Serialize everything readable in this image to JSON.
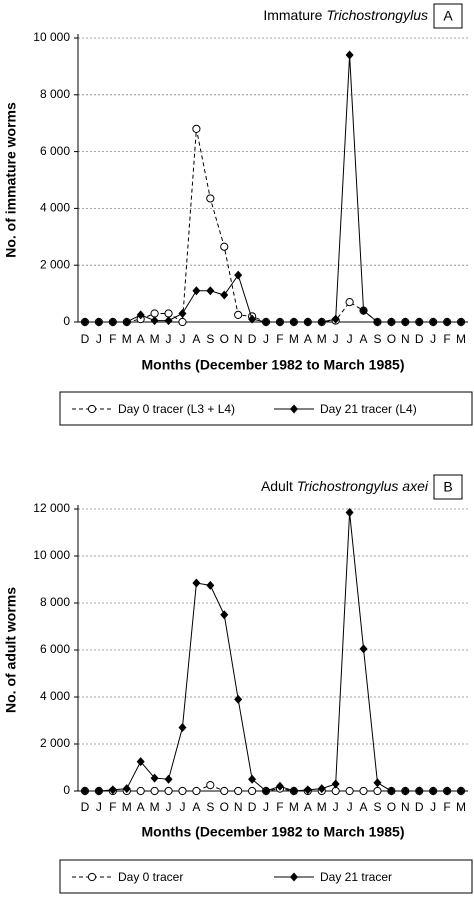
{
  "chart_data": [
    {
      "type": "line",
      "title": "Immature",
      "title_italic": "Trichostrongylus",
      "panel_label": "A",
      "y_label": "No. of immature worms",
      "x_label": "Months (December 1982 to March 1985)",
      "categories": [
        "D",
        "J",
        "F",
        "M",
        "A",
        "M",
        "J",
        "J",
        "A",
        "S",
        "O",
        "N",
        "D",
        "J",
        "F",
        "M",
        "A",
        "M",
        "J",
        "J",
        "A",
        "S",
        "O",
        "N",
        "D",
        "J",
        "F",
        "M"
      ],
      "ylim": [
        0,
        10000
      ],
      "yticks": [
        0,
        {
          "value": 2000,
          "label": "2 000"
        },
        {
          "value": 4000,
          "label": "4 000"
        },
        {
          "value": 6000,
          "label": "6 000"
        },
        {
          "value": 8000,
          "label": "8 000"
        },
        {
          "value": 10000,
          "label": "10 000"
        }
      ],
      "grid": true,
      "series": [
        {
          "name": "Day 0 tracer (L3 + L4)",
          "color": "#000000",
          "marker": "open-circle",
          "dashed": true,
          "values": [
            0,
            0,
            0,
            0,
            100,
            300,
            300,
            0,
            6800,
            4350,
            2650,
            250,
            200,
            0,
            0,
            0,
            0,
            0,
            50,
            700,
            400,
            0,
            0,
            0,
            0,
            0,
            0,
            0
          ]
        },
        {
          "name": "Day 21 tracer (L4)",
          "color": "#000000",
          "marker": "filled-diamond",
          "dashed": false,
          "values": [
            0,
            0,
            0,
            0,
            250,
            50,
            50,
            300,
            1100,
            1100,
            950,
            1650,
            100,
            0,
            0,
            0,
            0,
            0,
            100,
            9400,
            400,
            0,
            0,
            0,
            0,
            0,
            0,
            0
          ]
        }
      ]
    },
    {
      "type": "line",
      "title": "Adult",
      "title_italic": "Trichostrongylus axei",
      "panel_label": "B",
      "y_label": "No. of adult worms",
      "x_label": "Months (December 1982 to March 1985)",
      "categories": [
        "D",
        "J",
        "F",
        "M",
        "A",
        "M",
        "J",
        "J",
        "A",
        "S",
        "O",
        "N",
        "D",
        "J",
        "F",
        "M",
        "A",
        "M",
        "J",
        "J",
        "A",
        "S",
        "O",
        "N",
        "D",
        "J",
        "F",
        "M"
      ],
      "ylim": [
        0,
        12000
      ],
      "yticks": [
        0,
        {
          "value": 2000,
          "label": "2 000"
        },
        {
          "value": 4000,
          "label": "4 000"
        },
        {
          "value": 6000,
          "label": "6 000"
        },
        {
          "value": 8000,
          "label": "8 000"
        },
        {
          "value": 10000,
          "label": "10 000"
        },
        {
          "value": 12000,
          "label": "12 000"
        }
      ],
      "grid": true,
      "series": [
        {
          "name": "Day 0 tracer",
          "color": "#000000",
          "marker": "open-circle",
          "dashed": true,
          "values": [
            0,
            0,
            0,
            0,
            0,
            0,
            0,
            0,
            0,
            250,
            0,
            0,
            0,
            0,
            100,
            0,
            0,
            0,
            0,
            0,
            0,
            0,
            0,
            0,
            0,
            0,
            0,
            0
          ]
        },
        {
          "name": "Day 21 tracer",
          "color": "#000000",
          "marker": "filled-diamond",
          "dashed": false,
          "values": [
            0,
            0,
            50,
            100,
            1250,
            550,
            500,
            2700,
            8850,
            8750,
            7500,
            3900,
            500,
            0,
            200,
            0,
            50,
            100,
            300,
            11850,
            6050,
            350,
            0,
            0,
            0,
            0,
            0,
            0
          ]
        }
      ]
    }
  ]
}
